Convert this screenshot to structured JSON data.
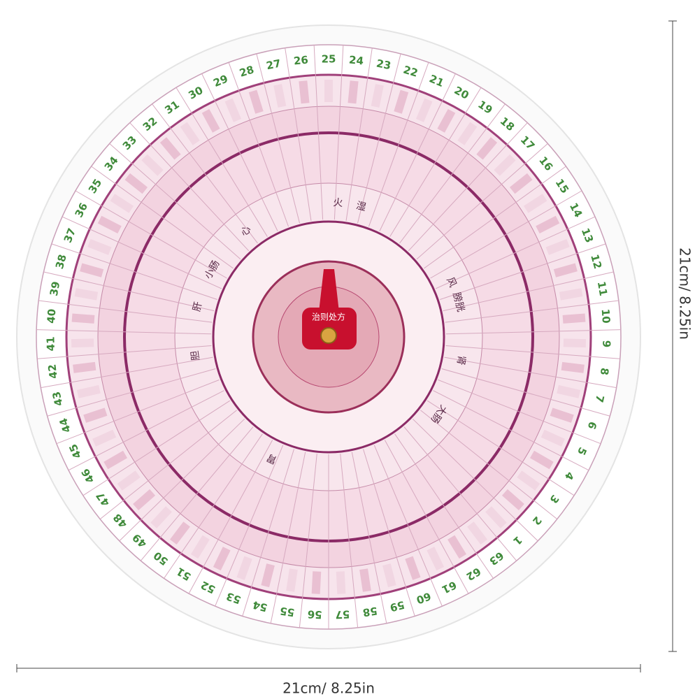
{
  "dimensions": {
    "width_label": "21cm/ 8.25in",
    "height_label": "21cm/ 8.25in"
  },
  "wheel": {
    "numbers": [
      1,
      2,
      3,
      4,
      5,
      6,
      7,
      8,
      9,
      10,
      11,
      12,
      13,
      14,
      15,
      16,
      17,
      18,
      19,
      20,
      21,
      22,
      23,
      24,
      25,
      26,
      27,
      28,
      29,
      30,
      31,
      32,
      33,
      34,
      35,
      36,
      37,
      38,
      39,
      40,
      41,
      42,
      43,
      44,
      45,
      46,
      47,
      48,
      49,
      50,
      51,
      52,
      53,
      54,
      55,
      56,
      57,
      58,
      59,
      60,
      61,
      62,
      63
    ],
    "organs": [
      "心",
      "火",
      "湿",
      "风",
      "膀胱",
      "肾",
      "大肠",
      "胃",
      "胆",
      "肝",
      "小肠"
    ],
    "center_label": "治则处方"
  }
}
